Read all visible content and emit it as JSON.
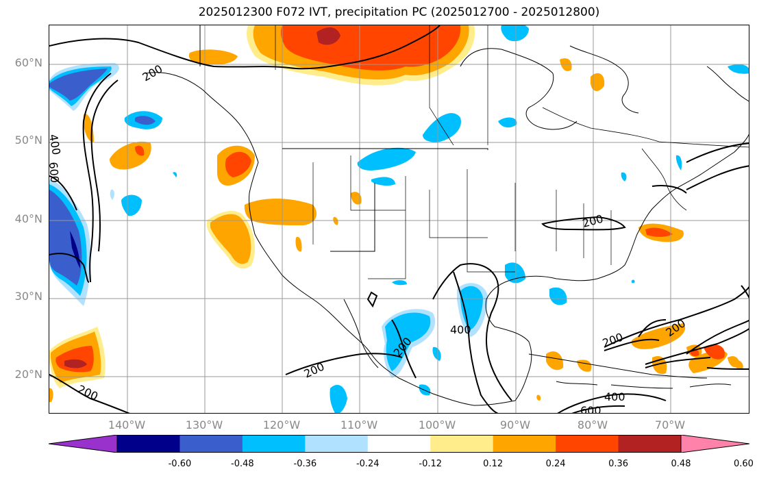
{
  "title": "2025012300 F072 IVT, precipitation PC (2025012700 - 2025012800)",
  "lat_labels": [
    "60°N",
    "50°N",
    "40°N",
    "30°N",
    "20°N"
  ],
  "lon_labels": [
    "140°W",
    "130°W",
    "120°W",
    "110°W",
    "100°W",
    "90°W",
    "80°W",
    "70°W"
  ],
  "contour_labels": [
    "200",
    "400",
    "600",
    "200",
    "200",
    "400",
    "200",
    "200",
    "400",
    "600",
    "200",
    "200"
  ],
  "colorbar": {
    "ticks": [
      "-0.60",
      "-0.48",
      "-0.36",
      "-0.24",
      "-0.12",
      "0.12",
      "0.24",
      "0.36",
      "0.48",
      "0.60"
    ],
    "colors": [
      "#9932cc",
      "#00008b",
      "#3a5fcd",
      "#00bfff",
      "#b0e2ff",
      "#ffffff",
      "#ffec8b",
      "#ffa500",
      "#ff4500",
      "#b22222",
      "#ff82ab"
    ]
  },
  "map_data": {
    "type": "map",
    "extent_lon": [
      -150,
      -59
    ],
    "extent_lat": [
      15,
      65
    ],
    "grid_lons": [
      -140,
      -130,
      -120,
      -110,
      -100,
      -90,
      -80,
      -70
    ],
    "grid_lats": [
      20,
      30,
      40,
      50,
      60
    ],
    "ivt_contour_levels": [
      200,
      400,
      600
    ],
    "pc_color_levels": [
      -0.6,
      -0.48,
      -0.36,
      -0.24,
      -0.12,
      0.12,
      0.24,
      0.36,
      0.48,
      0.6
    ]
  }
}
